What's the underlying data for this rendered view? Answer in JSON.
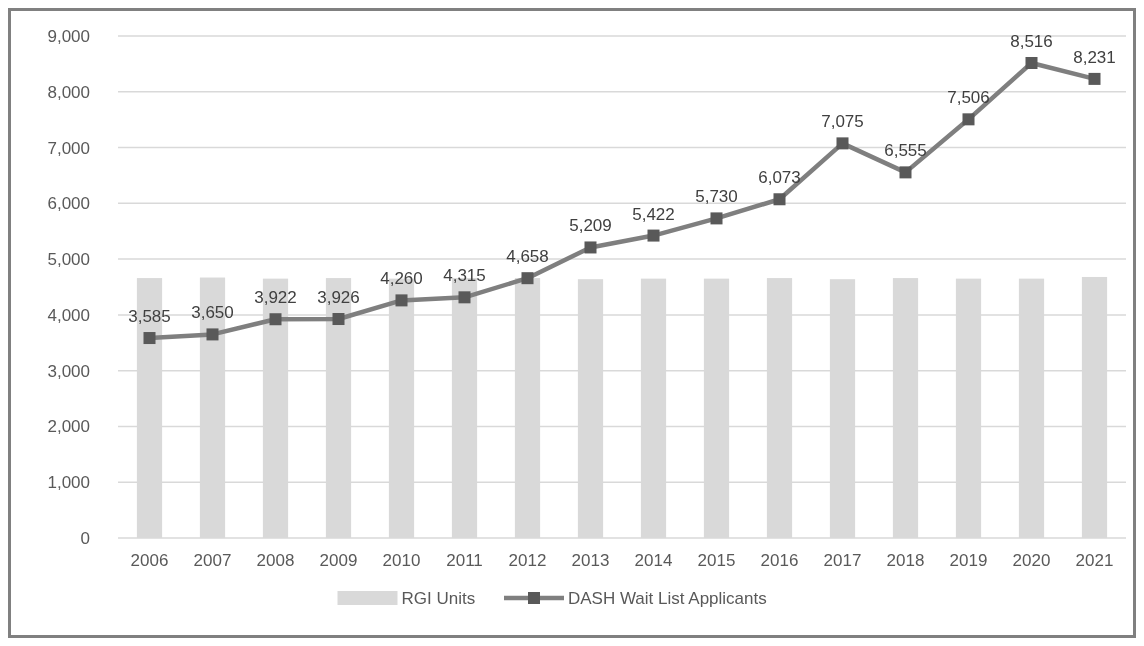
{
  "chart_data": {
    "type": "bar",
    "categories": [
      "2006",
      "2007",
      "2008",
      "2009",
      "2010",
      "2011",
      "2012",
      "2013",
      "2014",
      "2015",
      "2016",
      "2017",
      "2018",
      "2019",
      "2020",
      "2021"
    ],
    "series": [
      {
        "name": "RGI Units",
        "color": "#d9d9d9",
        "values": [
          4660,
          4670,
          4650,
          4660,
          4650,
          4660,
          4660,
          4640,
          4650,
          4650,
          4660,
          4640,
          4660,
          4650,
          4650,
          4680
        ]
      },
      {
        "name": "DASH Wait List Applicants",
        "type": "line",
        "color": "#7f7f7f",
        "marker": "square",
        "values": [
          3585,
          3650,
          3922,
          3926,
          4260,
          4315,
          4658,
          5209,
          5422,
          5730,
          6073,
          7075,
          6555,
          7506,
          8516,
          8231
        ],
        "value_labels": [
          "3,585",
          "3,650",
          "3,922",
          "3,926",
          "4,260",
          "4,315",
          "4,658",
          "5,209",
          "5,422",
          "5,730",
          "6,073",
          "7,075",
          "6,555",
          "7,506",
          "8,516",
          "8,231"
        ]
      }
    ],
    "ylim": [
      0,
      9000
    ],
    "yticks": [
      {
        "value": 0,
        "label": "0"
      },
      {
        "value": 1000,
        "label": "1,000"
      },
      {
        "value": 2000,
        "label": "2,000"
      },
      {
        "value": 3000,
        "label": "3,000"
      },
      {
        "value": 4000,
        "label": "4,000"
      },
      {
        "value": 5000,
        "label": "5,000"
      },
      {
        "value": 6000,
        "label": "6,000"
      },
      {
        "value": 7000,
        "label": "7,000"
      },
      {
        "value": 8000,
        "label": "8,000"
      },
      {
        "value": 9000,
        "label": "9,000"
      }
    ],
    "grid": "y",
    "legend": "bottom"
  }
}
